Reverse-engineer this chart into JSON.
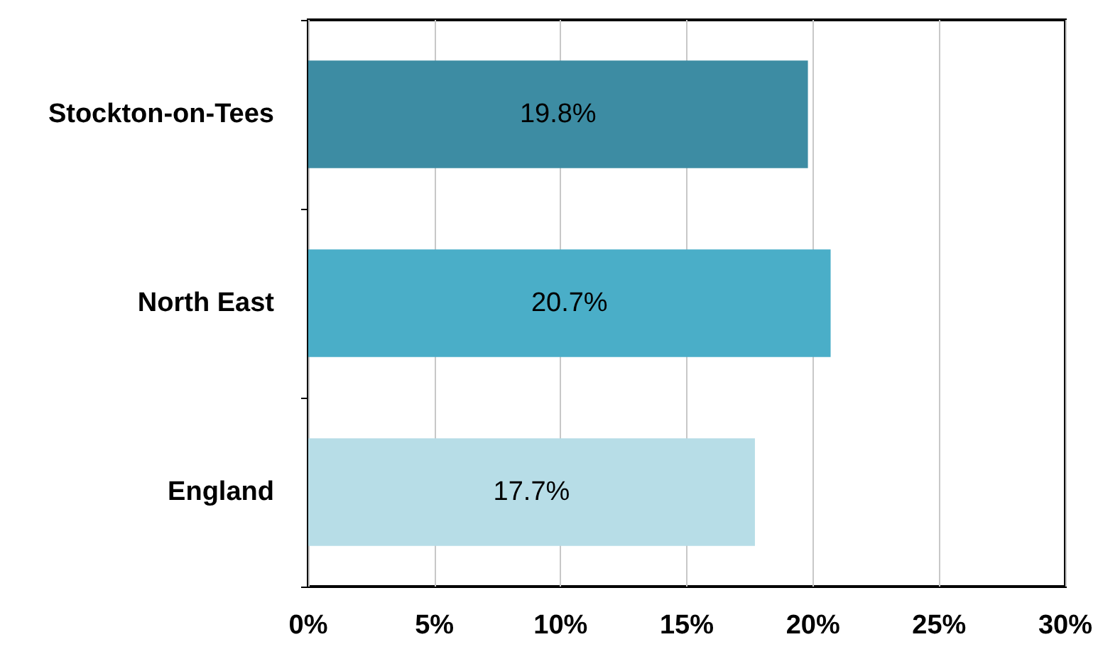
{
  "chart_data": {
    "type": "bar",
    "orientation": "horizontal",
    "categories": [
      "Stockton-on-Tees",
      "North East",
      "England"
    ],
    "values": [
      19.8,
      20.7,
      17.7
    ],
    "colors": [
      "#3d8ca3",
      "#4aaec8",
      "#b7dde7"
    ],
    "value_labels": [
      "19.8%",
      "20.7%",
      "17.7%"
    ],
    "xlim": [
      0,
      30
    ],
    "xticks": [
      {
        "value": 0,
        "label": "0%"
      },
      {
        "value": 5,
        "label": "5%"
      },
      {
        "value": 10,
        "label": "10%"
      },
      {
        "value": 15,
        "label": "15%"
      },
      {
        "value": 20,
        "label": "20%"
      },
      {
        "value": 25,
        "label": "25%"
      },
      {
        "value": 30,
        "label": "30%"
      }
    ],
    "grid": "x"
  }
}
